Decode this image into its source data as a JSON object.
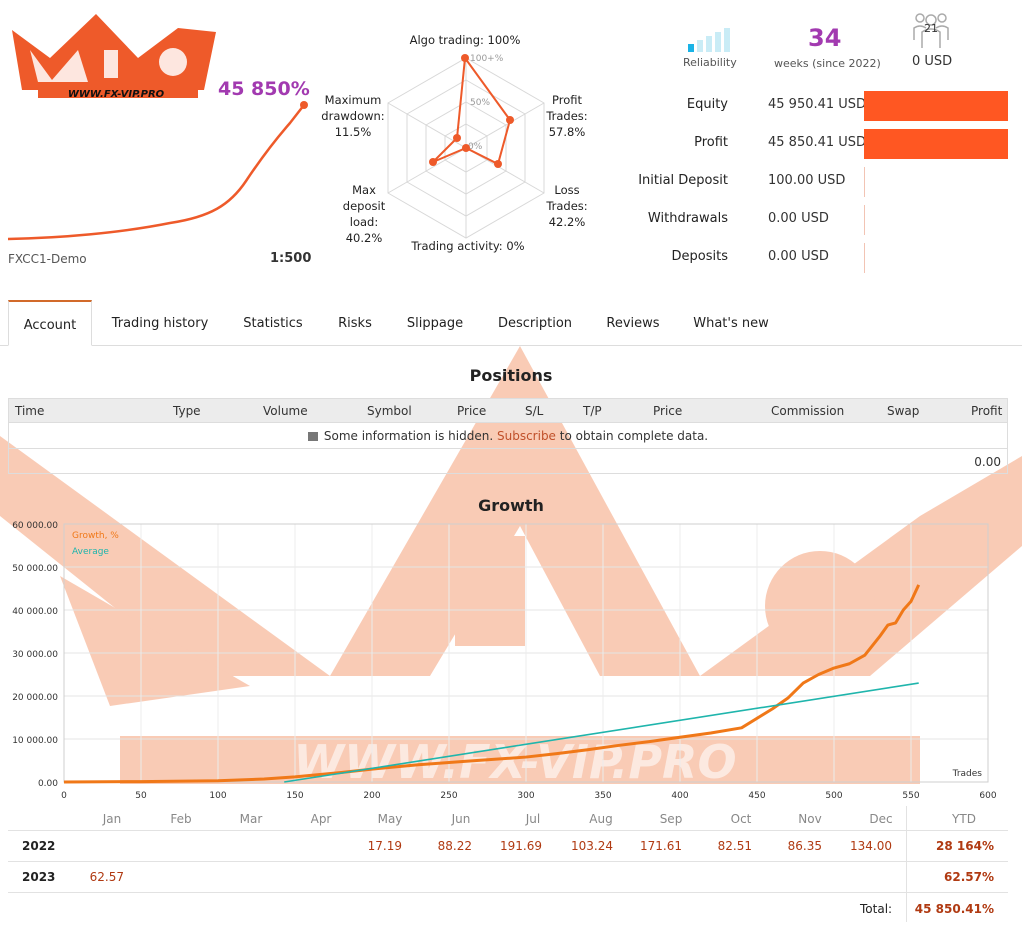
{
  "header": {
    "growth_percent": "45 850%",
    "broker": "FXCC1-Demo",
    "leverage": "1:500"
  },
  "radar": {
    "algo_trading": "Algo trading: 100%",
    "profit_trades": "Profit\nTrades:\n57.8%",
    "loss_trades": "Loss\nTrades:\n42.2%",
    "trading_activity": "Trading activity: 0%",
    "max_deposit_load": "Max\ndeposit\nload:\n40.2%",
    "max_drawdown": "Maximum\ndrawdown:\n11.5%",
    "scale_100": "100+%",
    "scale_50": "50%",
    "scale_0": "0%"
  },
  "stats": {
    "reliability_label": "Reliability",
    "weeks": "34",
    "weeks_label": "weeks (since 2022)",
    "subscribers": "21",
    "subscribers_value": "0 USD",
    "reliability_level": 0.2
  },
  "finance": [
    {
      "label": "Equity",
      "value": "45 950.41 USD",
      "fill": 1.0
    },
    {
      "label": "Profit",
      "value": "45 850.41 USD",
      "fill": 0.998
    },
    {
      "label": "Initial Deposit",
      "value": "100.00 USD",
      "fill": 0.002
    },
    {
      "label": "Withdrawals",
      "value": "0.00 USD",
      "fill": 0
    },
    {
      "label": "Deposits",
      "value": "0.00 USD",
      "fill": 0
    }
  ],
  "tabs": [
    "Account",
    "Trading history",
    "Statistics",
    "Risks",
    "Slippage",
    "Description",
    "Reviews",
    "What's new"
  ],
  "positions": {
    "title": "Positions",
    "columns": [
      "Time",
      "Type",
      "Volume",
      "Symbol",
      "Price",
      "S/L",
      "T/P",
      "Price",
      "Commission",
      "Swap",
      "Profit"
    ],
    "info_prefix": "Some information is hidden.",
    "info_link": "Subscribe",
    "info_suffix": "to obtain complete data.",
    "total_profit": "0.00"
  },
  "watermark_text": "WWW.FX-VIP.PRO",
  "logo_text": "WWW.FX-VIP.PRO",
  "growth": {
    "title": "Growth",
    "legend_growth": "Growth, %",
    "legend_average": "Average",
    "x_axis_label": "Trades"
  },
  "chart_data": {
    "type": "line",
    "title": "Growth",
    "xlabel": "Trades",
    "ylabel": "",
    "xlim": [
      0,
      600
    ],
    "ylim": [
      0,
      60000
    ],
    "x_ticks": [
      0,
      50,
      100,
      150,
      200,
      250,
      300,
      350,
      400,
      450,
      500,
      550,
      600
    ],
    "y_ticks": [
      "0.00",
      "10 000.00",
      "20 000.00",
      "30 000.00",
      "40 000.00",
      "50 000.00",
      "60 000.00"
    ],
    "legend": "top-left",
    "series": [
      {
        "name": "Growth, %",
        "color": "#f07818",
        "x": [
          0,
          50,
          100,
          130,
          150,
          180,
          200,
          230,
          260,
          300,
          320,
          340,
          360,
          380,
          400,
          420,
          440,
          460,
          470,
          480,
          490,
          500,
          510,
          520,
          530,
          535,
          540,
          545,
          550,
          555
        ],
        "y": [
          0,
          100,
          300,
          700,
          1200,
          2200,
          3000,
          4000,
          4800,
          5800,
          6600,
          7500,
          8500,
          9400,
          10400,
          11400,
          12600,
          17000,
          19500,
          23000,
          25000,
          26500,
          27500,
          29500,
          34000,
          36500,
          37000,
          40000,
          42000,
          45850
        ]
      },
      {
        "name": "Average",
        "color": "#1fb5ac",
        "x": [
          143,
          555
        ],
        "y": [
          0,
          23000
        ]
      }
    ]
  },
  "monthly": {
    "months": [
      "Jan",
      "Feb",
      "Mar",
      "Apr",
      "May",
      "Jun",
      "Jul",
      "Aug",
      "Sep",
      "Oct",
      "Nov",
      "Dec"
    ],
    "ytd_label": "YTD",
    "rows": [
      {
        "year": "2022",
        "values": [
          "",
          "",
          "",
          "",
          "17.19",
          "88.22",
          "191.69",
          "103.24",
          "171.61",
          "82.51",
          "86.35",
          "134.00"
        ],
        "ytd": "28 164%"
      },
      {
        "year": "2023",
        "values": [
          "62.57",
          "",
          "",
          "",
          "",
          "",
          "",
          "",
          "",
          "",
          "",
          ""
        ],
        "ytd": "62.57%"
      }
    ],
    "total_label": "Total:",
    "total_value": "45 850.41%"
  },
  "colors": {
    "accent_purple": "#a23ab0",
    "bar_orange": "#ff5722",
    "growth_line": "#f07818",
    "average_line": "#1fb5ac",
    "value_red": "#b03a12"
  }
}
